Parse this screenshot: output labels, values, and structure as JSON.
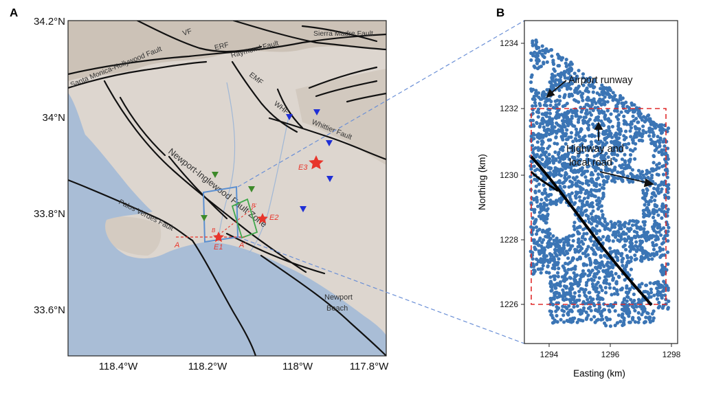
{
  "figure": {
    "panel_a_letter": "A",
    "panel_b_letter": "B"
  },
  "map": {
    "lat_ticks": [
      "34.2°N",
      "34°N",
      "33.8°N",
      "33.6°N"
    ],
    "lon_ticks": [
      "118.4°W",
      "118.2°W",
      "118°W",
      "117.8°W"
    ],
    "fault_labels": {
      "vf": "VF",
      "erf": "ERF",
      "raymond": "Raymond Fault",
      "sierra_madre": "Sierra Madre Fault",
      "santa_monica": "Santa Monica-Hollywood Fault",
      "emf": "EMF",
      "whf": "WHF",
      "whittier": "Whittier Fault",
      "newport_inglewood": "Newport-Inglewood Fault Zone",
      "palos_verdes": "Palos Verdes Fault"
    },
    "place_labels": {
      "newport_line1": "Newport",
      "newport_line2": "Beach"
    },
    "event_labels": {
      "e1": "E1",
      "e2": "E2",
      "e3": "E3"
    },
    "profile_labels": {
      "a": "A",
      "a_prime": "A'",
      "small1": "B",
      "small2": "B'"
    },
    "colors": {
      "ocean": "#a9bdd6",
      "land": "#ddd6cf",
      "fault": "#111111",
      "epicenter": "#e8352b",
      "station_blue": "#1f2fd6",
      "station_green": "#3d8a2a",
      "box_blue": "#5b8fd0",
      "box_green": "#3fa84a",
      "connector": "#6a8fd6"
    }
  },
  "plot": {
    "xlabel": "Easting (km)",
    "ylabel": "Northing (km)",
    "x_ticks": [
      "1294",
      "1296",
      "1298"
    ],
    "y_ticks": [
      "1226",
      "1228",
      "1230",
      "1232",
      "1234"
    ],
    "annotations": {
      "airport": "Airport runway",
      "highway_line1": "Highway and",
      "highway_line2": "local road"
    },
    "point_color": "#3b75b5"
  }
}
